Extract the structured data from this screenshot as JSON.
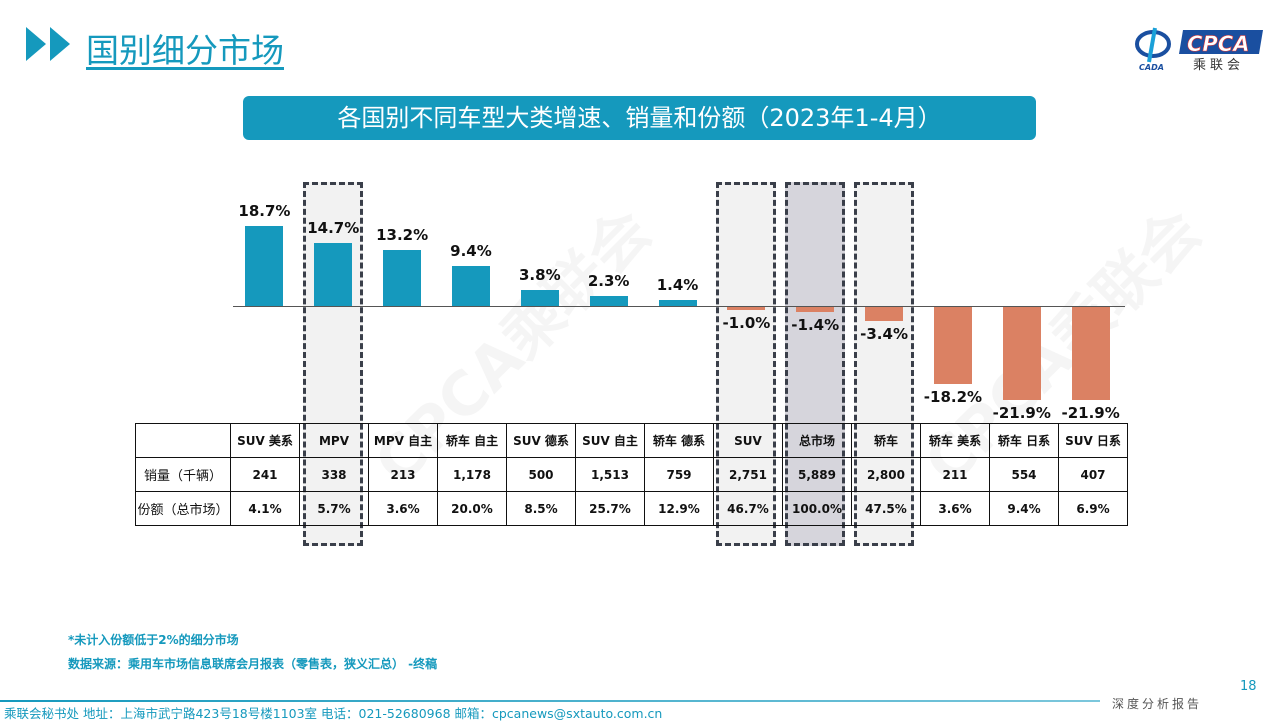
{
  "header": {
    "title": "国别细分市场",
    "logo_text": "CPCA",
    "logo_sub": "乘联会",
    "logo_mark": "CADA"
  },
  "colors": {
    "accent": "#1599bd",
    "positive": "#1599bd",
    "negative": "#db8163",
    "highlight_fill": "#f2f2f2",
    "total_fill": "#d6d5dc"
  },
  "chart_data": {
    "type": "bar",
    "title": "各国别不同车型大类增速、销量和份额（2023年1-4月）",
    "categories": [
      "SUV 美系",
      "MPV",
      "MPV 自主",
      "轿车 自主",
      "SUV 德系",
      "SUV 自主",
      "轿车 德系",
      "SUV",
      "总市场",
      "轿车",
      "轿车 美系",
      "轿车 日系",
      "SUV 日系"
    ],
    "values": [
      18.7,
      14.7,
      13.2,
      9.4,
      3.8,
      2.3,
      1.4,
      -1.0,
      -1.4,
      -3.4,
      -18.2,
      -21.9,
      -21.9
    ],
    "value_labels": [
      "18.7%",
      "14.7%",
      "13.2%",
      "9.4%",
      "3.8%",
      "2.3%",
      "1.4%",
      "-1.0%",
      "-1.4%",
      "-3.4%",
      "-18.2%",
      "-21.9%",
      "-21.9%"
    ],
    "highlighted": [
      "MPV",
      "SUV",
      "总市场",
      "轿车"
    ],
    "unit": "%"
  },
  "table": {
    "rows": [
      {
        "label": "销量（千辆）",
        "values": [
          "241",
          "338",
          "213",
          "1,178",
          "500",
          "1,513",
          "759",
          "2,751",
          "5,889",
          "2,800",
          "211",
          "554",
          "407"
        ]
      },
      {
        "label": "份额（总市场）",
        "values": [
          "4.1%",
          "5.7%",
          "3.6%",
          "20.0%",
          "8.5%",
          "25.7%",
          "12.9%",
          "46.7%",
          "100.0%",
          "47.5%",
          "3.6%",
          "9.4%",
          "6.9%"
        ]
      }
    ]
  },
  "notes": [
    "*未计入份额低于2%的细分市场",
    "数据来源：乘用车市场信息联席会月报表（零售表，狭义汇总） -终稿"
  ],
  "footer": {
    "text": "乘联会秘书处   地址：上海市武宁路423号18号楼1103室  电话：021-52680968   邮箱：cpcanews@sxtauto.com.cn",
    "page": "18",
    "report": "深度分析报告"
  },
  "watermark": "CPCA乘联会"
}
